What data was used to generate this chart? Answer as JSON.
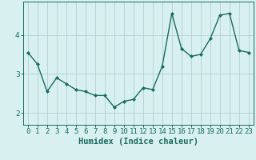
{
  "x": [
    0,
    1,
    2,
    3,
    4,
    5,
    6,
    7,
    8,
    9,
    10,
    11,
    12,
    13,
    14,
    15,
    16,
    17,
    18,
    19,
    20,
    21,
    22,
    23
  ],
  "y": [
    3.55,
    3.25,
    2.55,
    2.9,
    2.75,
    2.6,
    2.55,
    2.45,
    2.45,
    2.15,
    2.3,
    2.35,
    2.65,
    2.6,
    3.2,
    4.55,
    3.65,
    3.45,
    3.5,
    3.9,
    4.5,
    4.55,
    3.6,
    3.55
  ],
  "line_color": "#1a6b5e",
  "marker": "D",
  "marker_size": 2.0,
  "bg_color": "#d8f0f0",
  "grid_color": "#b8d4d4",
  "xlabel": "Humidex (Indice chaleur)",
  "xlabel_fontsize": 7.5,
  "xtick_labels": [
    "0",
    "1",
    "2",
    "3",
    "4",
    "5",
    "6",
    "7",
    "8",
    "9",
    "10",
    "11",
    "12",
    "13",
    "14",
    "15",
    "16",
    "17",
    "18",
    "19",
    "20",
    "21",
    "22",
    "23"
  ],
  "yticks": [
    2,
    3,
    4
  ],
  "ylim": [
    1.7,
    4.85
  ],
  "xlim": [
    -0.5,
    23.5
  ],
  "tick_fontsize": 6.5,
  "linewidth": 1.0
}
